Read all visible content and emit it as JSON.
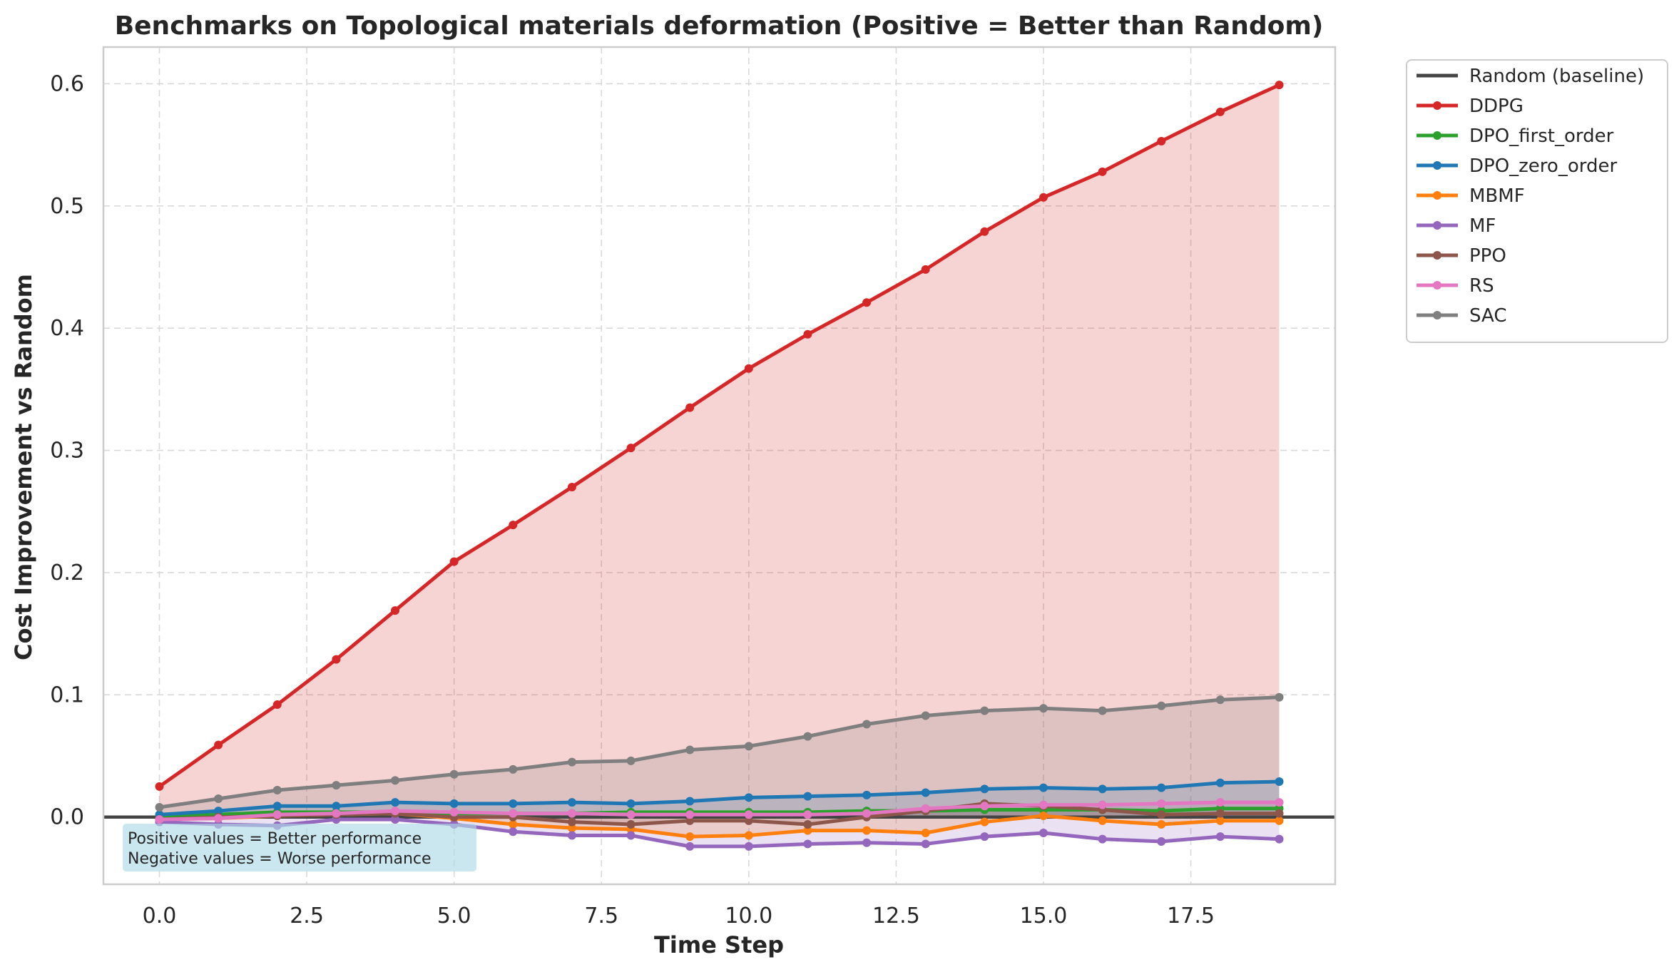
{
  "chart_data": {
    "type": "line",
    "title": "Benchmarks on Topological materials deformation (Positive = Better than Random)",
    "xlabel": "Time Step",
    "ylabel": "Cost Improvement vs Random",
    "xlim": [
      -0.95,
      19.95
    ],
    "ylim": [
      -0.055,
      0.63
    ],
    "xticks": [
      0.0,
      2.5,
      5.0,
      7.5,
      10.0,
      12.5,
      15.0,
      17.5
    ],
    "xtick_labels": [
      "0.0",
      "2.5",
      "5.0",
      "7.5",
      "10.0",
      "12.5",
      "15.0",
      "17.5"
    ],
    "yticks": [
      0.0,
      0.1,
      0.2,
      0.3,
      0.4,
      0.5,
      0.6
    ],
    "ytick_labels": [
      "0.0",
      "0.1",
      "0.2",
      "0.3",
      "0.4",
      "0.5",
      "0.6"
    ],
    "grid": true,
    "legend_position": "outside-top-right",
    "baseline": {
      "name": "Random (baseline)",
      "value": 0,
      "color": "#444444"
    },
    "x": [
      0,
      1,
      2,
      3,
      4,
      5,
      6,
      7,
      8,
      9,
      10,
      11,
      12,
      13,
      14,
      15,
      16,
      17,
      18,
      19
    ],
    "series": [
      {
        "name": "DDPG",
        "color": "#d62728",
        "values": [
          0.025,
          0.059,
          0.092,
          0.129,
          0.169,
          0.209,
          0.239,
          0.27,
          0.302,
          0.335,
          0.367,
          0.395,
          0.421,
          0.448,
          0.479,
          0.507,
          0.528,
          0.553,
          0.577,
          0.599
        ]
      },
      {
        "name": "DPO_first_order",
        "color": "#2ca02c",
        "values": [
          0.0,
          0.002,
          0.004,
          0.004,
          0.004,
          0.003,
          0.003,
          0.003,
          0.004,
          0.004,
          0.004,
          0.004,
          0.005,
          0.005,
          0.006,
          0.006,
          0.006,
          0.005,
          0.007,
          0.007
        ]
      },
      {
        "name": "DPO_zero_order",
        "color": "#1f77b4",
        "values": [
          0.002,
          0.005,
          0.009,
          0.009,
          0.012,
          0.011,
          0.011,
          0.012,
          0.011,
          0.013,
          0.016,
          0.017,
          0.018,
          0.02,
          0.023,
          0.024,
          0.023,
          0.024,
          0.028,
          0.029
        ]
      },
      {
        "name": "MBMF",
        "color": "#ff7f0e",
        "values": [
          -0.002,
          -0.001,
          0.001,
          0.002,
          0.003,
          -0.001,
          -0.006,
          -0.009,
          -0.01,
          -0.016,
          -0.015,
          -0.011,
          -0.011,
          -0.013,
          -0.004,
          0.001,
          -0.003,
          -0.006,
          -0.003,
          -0.003
        ]
      },
      {
        "name": "MF",
        "color": "#9467bd",
        "values": [
          -0.004,
          -0.006,
          -0.007,
          -0.002,
          -0.002,
          -0.006,
          -0.012,
          -0.015,
          -0.015,
          -0.024,
          -0.024,
          -0.022,
          -0.021,
          -0.022,
          -0.016,
          -0.013,
          -0.018,
          -0.02,
          -0.016,
          -0.018
        ]
      },
      {
        "name": "PPO",
        "color": "#8c564b",
        "values": [
          -0.002,
          0.0,
          0.001,
          0.002,
          0.003,
          0.0,
          0.0,
          -0.004,
          -0.006,
          -0.003,
          -0.003,
          -0.006,
          0.0,
          0.005,
          0.011,
          0.009,
          0.006,
          0.002,
          0.003,
          0.003
        ]
      },
      {
        "name": "RS",
        "color": "#e377c2",
        "values": [
          -0.002,
          -0.001,
          0.002,
          0.003,
          0.005,
          0.004,
          0.003,
          0.003,
          0.002,
          0.002,
          0.002,
          0.002,
          0.003,
          0.007,
          0.009,
          0.01,
          0.01,
          0.011,
          0.012,
          0.012
        ]
      },
      {
        "name": "SAC",
        "color": "#7f7f7f",
        "values": [
          0.008,
          0.015,
          0.022,
          0.026,
          0.03,
          0.035,
          0.039,
          0.045,
          0.046,
          0.055,
          0.058,
          0.066,
          0.076,
          0.083,
          0.087,
          0.089,
          0.087,
          0.091,
          0.096,
          0.098
        ]
      }
    ],
    "annotation": {
      "lines": [
        "Positive values = Better performance",
        "Negative values = Worse performance"
      ],
      "background": "#add8e6"
    }
  }
}
